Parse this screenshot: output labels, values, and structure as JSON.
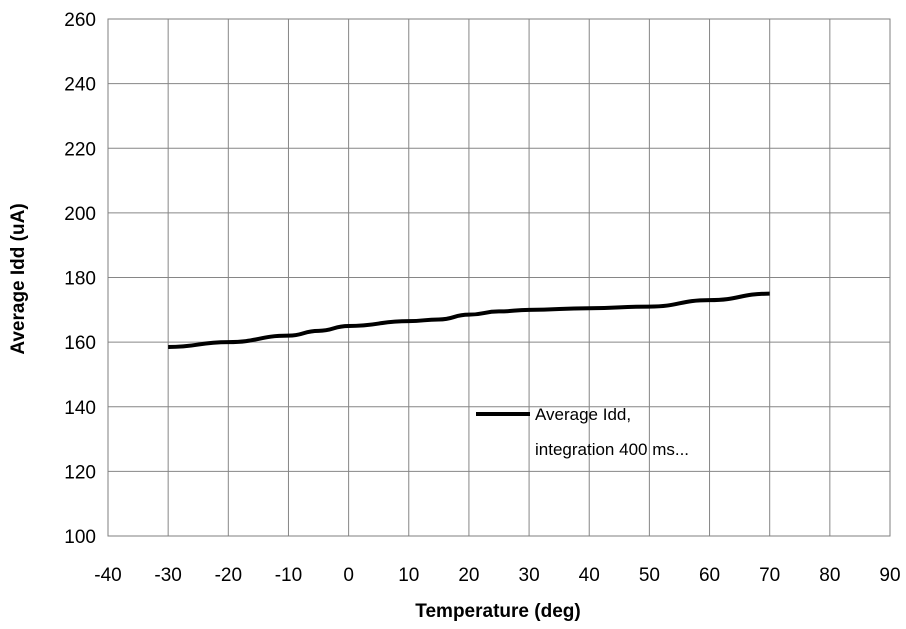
{
  "chart_data": {
    "type": "line",
    "xlabel": "Temperature (deg)",
    "ylabel": "Average Idd (uA)",
    "xlim": [
      -40,
      90
    ],
    "ylim": [
      100,
      260
    ],
    "xticks": [
      -40,
      -30,
      -20,
      -10,
      0,
      10,
      20,
      30,
      40,
      50,
      60,
      70,
      80,
      90
    ],
    "yticks": [
      100,
      120,
      140,
      160,
      180,
      200,
      220,
      240,
      260
    ],
    "grid": true,
    "legend_position": "inside-lower-center",
    "series": [
      {
        "name_lines": [
          "Average Idd,",
          "integration  400 ms..."
        ],
        "color": "#000000",
        "x": [
          -30,
          -20,
          -10,
          -5,
          0,
          10,
          15,
          20,
          25,
          30,
          40,
          50,
          60,
          70
        ],
        "y": [
          158.5,
          160,
          162,
          163.5,
          165,
          166.5,
          167,
          168.5,
          169.5,
          170,
          170.5,
          171,
          173,
          175
        ]
      }
    ]
  }
}
